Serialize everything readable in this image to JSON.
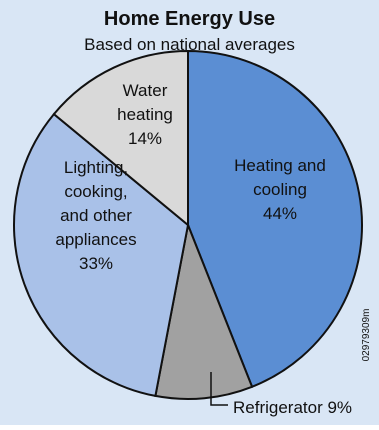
{
  "chart_data": {
    "type": "pie",
    "title": "Home Energy Use",
    "subtitle": "Based on national averages",
    "slices": [
      {
        "lines": [
          "Heating and",
          "cooling"
        ],
        "value": 44,
        "pct_text": "44%",
        "color": "#5b8ed3"
      },
      {
        "lines": [
          "Refrigerator 9%"
        ],
        "value": 9,
        "pct_text": "",
        "color": "#a1a1a1"
      },
      {
        "lines": [
          "Lighting,",
          "cooking,",
          "and other",
          "appliances"
        ],
        "value": 33,
        "pct_text": "33%",
        "color": "#a9c1e8"
      },
      {
        "lines": [
          "Water",
          "heating"
        ],
        "value": 14,
        "pct_text": "14%",
        "color": "#d9d9d9"
      }
    ],
    "start_angle_deg": 0,
    "direction": "clockwise",
    "legend": "none"
  },
  "code_id": "02979309m",
  "colors": {
    "frame_background": "#d9e6f5",
    "outline": "#111111"
  }
}
